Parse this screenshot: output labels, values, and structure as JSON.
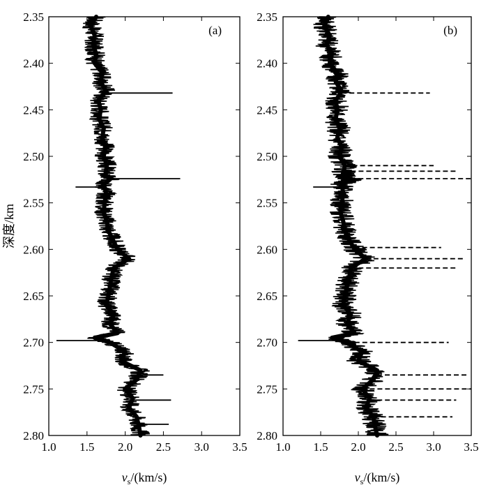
{
  "chart_data": [
    {
      "type": "line",
      "panel_label": "(a)",
      "orientation": "vertical-depth",
      "xlabel": {
        "symbol": "v",
        "subscript": "s",
        "unit": "/(km/s)"
      },
      "ylabel": "深度/km",
      "xlim": [
        1.0,
        3.5
      ],
      "ylim": [
        2.35,
        2.8
      ],
      "y_inverted": true,
      "xticks": [
        "1.0",
        "1.5",
        "2.0",
        "2.5",
        "3.0",
        "3.5"
      ],
      "yticks": [
        "2.35",
        "2.40",
        "2.45",
        "2.50",
        "2.55",
        "2.60",
        "2.65",
        "2.70",
        "2.75",
        "2.80"
      ],
      "series": [
        {
          "color": "#000000",
          "depth": [
            2.35,
            2.36,
            2.37,
            2.38,
            2.39,
            2.4,
            2.41,
            2.42,
            2.43,
            2.44,
            2.45,
            2.46,
            2.47,
            2.48,
            2.49,
            2.5,
            2.51,
            2.52,
            2.525,
            2.53,
            2.54,
            2.55,
            2.56,
            2.57,
            2.58,
            2.59,
            2.6,
            2.61,
            2.62,
            2.63,
            2.64,
            2.65,
            2.66,
            2.67,
            2.68,
            2.69,
            2.695,
            2.7,
            2.71,
            2.72,
            2.73,
            2.74,
            2.75,
            2.76,
            2.77,
            2.78,
            2.79,
            2.8
          ],
          "vs": [
            1.62,
            1.55,
            1.6,
            1.58,
            1.62,
            1.6,
            1.7,
            1.68,
            1.75,
            1.65,
            1.68,
            1.66,
            1.72,
            1.7,
            1.74,
            1.72,
            1.76,
            1.74,
            1.8,
            1.72,
            1.75,
            1.73,
            1.72,
            1.76,
            1.78,
            1.84,
            1.9,
            2.05,
            1.85,
            1.82,
            1.8,
            1.78,
            1.75,
            1.85,
            1.8,
            1.9,
            1.6,
            1.8,
            2.0,
            1.95,
            2.2,
            2.15,
            2.0,
            2.1,
            2.05,
            2.15,
            2.18,
            2.2
          ],
          "spikes": [
            {
              "depth": 2.432,
              "vs": 2.62
            },
            {
              "depth": 2.524,
              "vs": 2.72
            },
            {
              "depth": 2.533,
              "vs": 1.35
            },
            {
              "depth": 2.698,
              "vs": 1.1
            },
            {
              "depth": 2.735,
              "vs": 2.5
            },
            {
              "depth": 2.762,
              "vs": 2.6
            },
            {
              "depth": 2.788,
              "vs": 2.57
            }
          ]
        }
      ]
    },
    {
      "type": "line",
      "panel_label": "(b)",
      "orientation": "vertical-depth",
      "xlabel": {
        "symbol": "v",
        "subscript": "s",
        "unit": "/(km/s)"
      },
      "ylabel": "",
      "xlim": [
        1.0,
        3.5
      ],
      "ylim": [
        2.35,
        2.8
      ],
      "y_inverted": true,
      "xticks": [
        "1.0",
        "1.5",
        "2.0",
        "2.5",
        "3.0",
        "3.5"
      ],
      "yticks": [
        "2.35",
        "2.40",
        "2.45",
        "2.50",
        "2.55",
        "2.60",
        "2.65",
        "2.70",
        "2.75",
        "2.80"
      ],
      "series": [
        {
          "color": "#000000",
          "depth": [
            2.35,
            2.36,
            2.37,
            2.38,
            2.39,
            2.4,
            2.41,
            2.42,
            2.43,
            2.44,
            2.45,
            2.46,
            2.47,
            2.48,
            2.49,
            2.5,
            2.51,
            2.52,
            2.525,
            2.53,
            2.54,
            2.55,
            2.56,
            2.57,
            2.58,
            2.59,
            2.6,
            2.61,
            2.62,
            2.63,
            2.64,
            2.65,
            2.66,
            2.67,
            2.68,
            2.69,
            2.695,
            2.7,
            2.71,
            2.72,
            2.73,
            2.74,
            2.75,
            2.76,
            2.77,
            2.78,
            2.79,
            2.8
          ],
          "vs": [
            1.6,
            1.55,
            1.62,
            1.58,
            1.65,
            1.62,
            1.72,
            1.7,
            1.78,
            1.7,
            1.72,
            1.7,
            1.75,
            1.72,
            1.78,
            1.75,
            1.82,
            1.8,
            1.9,
            1.78,
            1.8,
            1.78,
            1.76,
            1.8,
            1.82,
            1.88,
            1.95,
            2.1,
            1.9,
            1.88,
            1.85,
            1.82,
            1.8,
            1.9,
            1.85,
            1.95,
            1.65,
            1.85,
            2.05,
            2.0,
            2.25,
            2.2,
            2.05,
            2.15,
            2.1,
            2.2,
            2.22,
            2.25
          ],
          "spikes": [
            {
              "depth": 2.432,
              "vs": 2.95
            },
            {
              "depth": 2.51,
              "vs": 3.0
            },
            {
              "depth": 2.516,
              "vs": 3.3
            },
            {
              "depth": 2.524,
              "vs": 3.5
            },
            {
              "depth": 2.533,
              "vs": 1.4
            },
            {
              "depth": 2.598,
              "vs": 3.1
            },
            {
              "depth": 2.61,
              "vs": 3.4
            },
            {
              "depth": 2.62,
              "vs": 3.3
            },
            {
              "depth": 2.698,
              "vs": 1.2
            },
            {
              "depth": 2.7,
              "vs": 3.2
            },
            {
              "depth": 2.735,
              "vs": 3.45
            },
            {
              "depth": 2.75,
              "vs": 3.5
            },
            {
              "depth": 2.762,
              "vs": 3.3
            },
            {
              "depth": 2.78,
              "vs": 3.25
            }
          ]
        }
      ]
    }
  ]
}
